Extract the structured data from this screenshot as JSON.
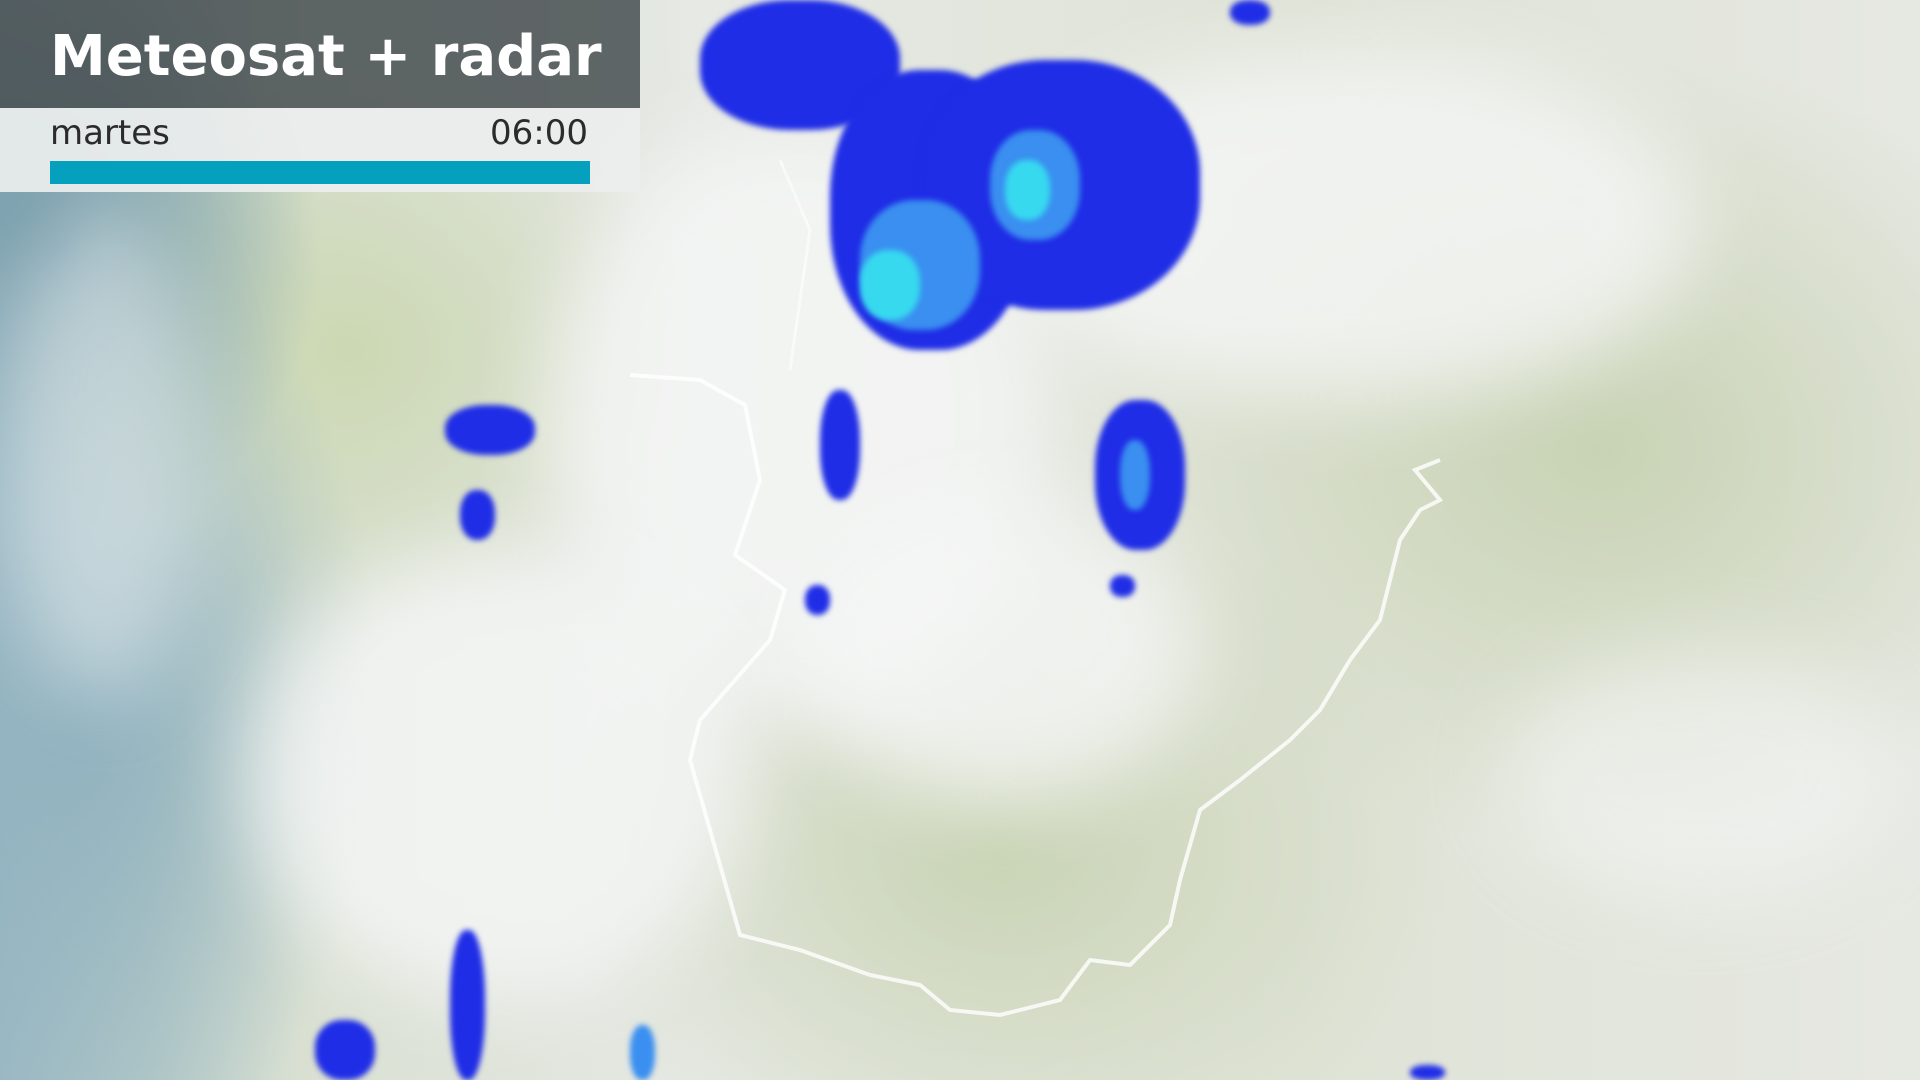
{
  "header": {
    "title": "Meteosat + radar",
    "day": "martes",
    "time": "06:00",
    "progress_percent": 100
  },
  "colors": {
    "progress": "#05a0be",
    "title_bg": "#464e50",
    "radar_light": "#1f2de6",
    "radar_moderate": "#3a8ff0",
    "radar_heavy": "#37d9ef"
  }
}
